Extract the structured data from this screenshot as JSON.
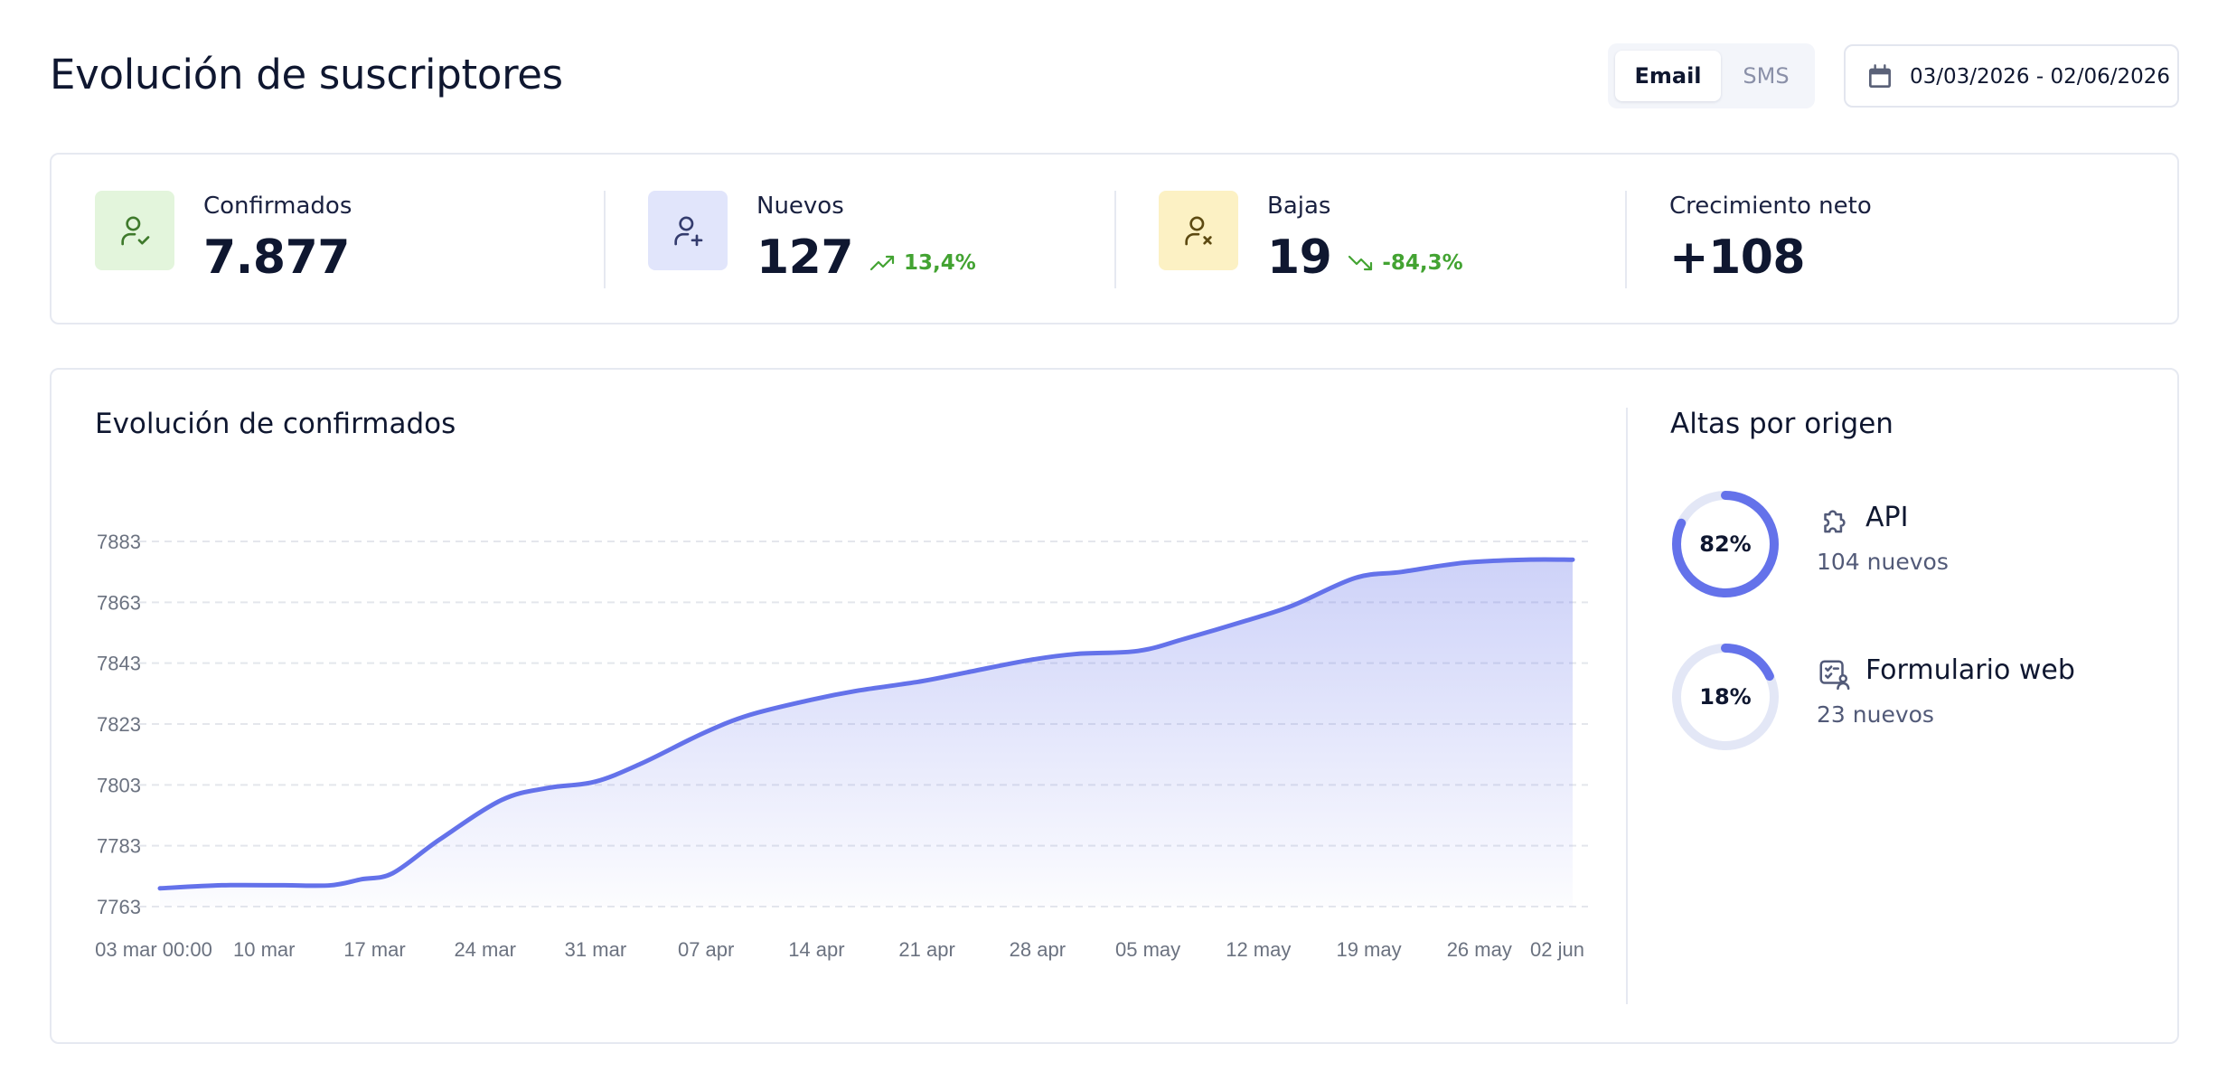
{
  "header": {
    "title": "Evolución de suscriptores",
    "channel_tabs": [
      {
        "label": "Email",
        "selected": true
      },
      {
        "label": "SMS",
        "selected": false
      }
    ],
    "date_range": "03/03/2026 - 02/06/2026"
  },
  "stats": [
    {
      "label": "Confirmados",
      "value": "7.877",
      "trend": null,
      "icon": "user-check-icon",
      "icon_bg": "#e3f5dc",
      "icon_color": "#3f7a2c"
    },
    {
      "label": "Nuevos",
      "value": "127",
      "trend": "13,4%",
      "trend_direction": "up",
      "icon": "user-plus-icon",
      "icon_bg": "#e1e5fb",
      "icon_color": "#343c6e"
    },
    {
      "label": "Bajas",
      "value": "19",
      "trend": "-84,3%",
      "trend_direction": "down",
      "icon": "user-x-icon",
      "icon_bg": "#fcf1c4",
      "icon_color": "#5d4a12"
    },
    {
      "label": "Crecimiento neto",
      "value": "+108",
      "trend": null
    }
  ],
  "colors": {
    "accent": "#6472ea",
    "positive": "#43a332",
    "track": "#e3e7f6"
  },
  "chart_title": "Evolución de confirmados",
  "chart_data": {
    "type": "area",
    "title": "Evolución de confirmados",
    "xlabel": "",
    "ylabel": "",
    "ylim": [
      7763,
      7883
    ],
    "yticks": [
      7763,
      7783,
      7803,
      7823,
      7843,
      7863,
      7883
    ],
    "xticks": [
      "03 mar 00:00",
      "10 mar",
      "17 mar",
      "24 mar",
      "31 mar",
      "07 apr",
      "14 apr",
      "21 apr",
      "28 apr",
      "05 may",
      "12 may",
      "19 may",
      "26 may",
      "02 jun"
    ],
    "xtick_days": [
      0,
      7,
      14,
      21,
      28,
      35,
      42,
      49,
      56,
      63,
      70,
      77,
      84,
      91
    ],
    "grid": true,
    "series": [
      {
        "values": [
          {
            "x": 0,
            "y": 7769
          },
          {
            "x": 4,
            "y": 7770
          },
          {
            "x": 8,
            "y": 7770
          },
          {
            "x": 11,
            "y": 7770
          },
          {
            "x": 13,
            "y": 7772
          },
          {
            "x": 15,
            "y": 7774
          },
          {
            "x": 18,
            "y": 7785
          },
          {
            "x": 22,
            "y": 7798
          },
          {
            "x": 25,
            "y": 7802
          },
          {
            "x": 28,
            "y": 7804
          },
          {
            "x": 31,
            "y": 7810
          },
          {
            "x": 35,
            "y": 7820
          },
          {
            "x": 38,
            "y": 7826
          },
          {
            "x": 42,
            "y": 7831
          },
          {
            "x": 45,
            "y": 7834
          },
          {
            "x": 49,
            "y": 7837
          },
          {
            "x": 52,
            "y": 7840
          },
          {
            "x": 56,
            "y": 7844
          },
          {
            "x": 59,
            "y": 7846
          },
          {
            "x": 63,
            "y": 7847
          },
          {
            "x": 66,
            "y": 7851
          },
          {
            "x": 70,
            "y": 7857
          },
          {
            "x": 73,
            "y": 7862
          },
          {
            "x": 77,
            "y": 7871
          },
          {
            "x": 80,
            "y": 7873
          },
          {
            "x": 84,
            "y": 7876
          },
          {
            "x": 88,
            "y": 7877
          },
          {
            "x": 91,
            "y": 7877
          }
        ]
      }
    ]
  },
  "origins_title": "Altas por origen",
  "origins": [
    {
      "name": "API",
      "count": "104 nuevos",
      "percent": "82%",
      "fraction": 0.82,
      "icon": "puzzle-icon"
    },
    {
      "name": "Formulario web",
      "count": "23 nuevos",
      "percent": "18%",
      "fraction": 0.18,
      "icon": "form-icon"
    }
  ]
}
